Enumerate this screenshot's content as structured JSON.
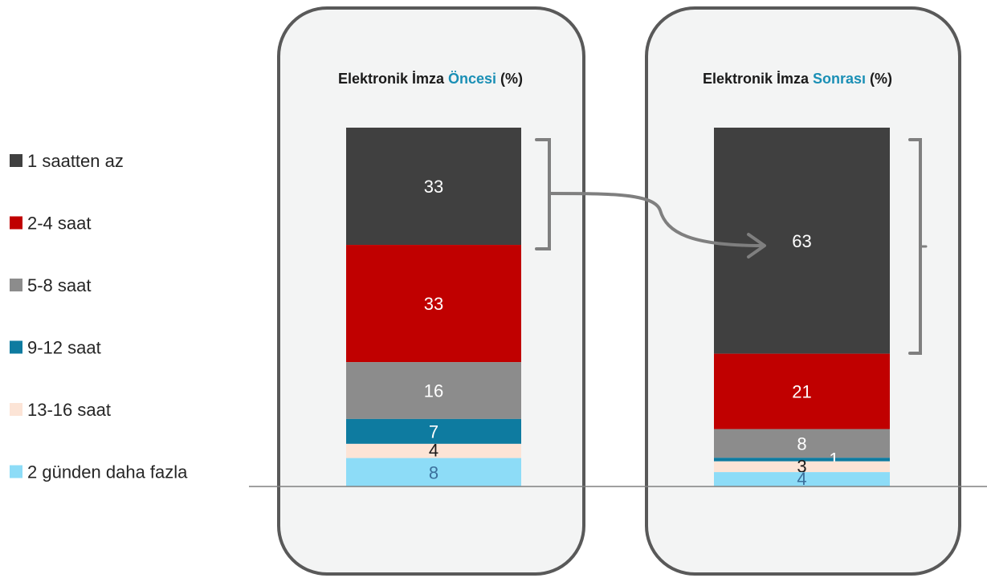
{
  "chart_data": {
    "type": "bar",
    "stacked": true,
    "unit": "%",
    "legend_position": "left",
    "categories": [
      "Elektronik İmza Öncesi (%)",
      "Elektronik İmza Sonrası (%)"
    ],
    "panels": [
      {
        "title_pre": "Elektronik İmza ",
        "title_highlight": "Öncesi",
        "title_post": " (%)"
      },
      {
        "title_pre": "Elektronik İmza ",
        "title_highlight": "Sonrası",
        "title_post": " (%)"
      }
    ],
    "series": [
      {
        "name": "1 saatten az",
        "color": "#404040",
        "values": [
          33,
          63
        ],
        "label_colors": [
          "#ffffff",
          "#ffffff"
        ]
      },
      {
        "name": "2-4 saat",
        "color": "#c00000",
        "values": [
          33,
          21
        ],
        "label_colors": [
          "#ffffff",
          "#ffffff"
        ]
      },
      {
        "name": "5-8 saat",
        "color": "#8c8c8c",
        "values": [
          16,
          8
        ],
        "label_colors": [
          "#ffffff",
          "#ffffff"
        ]
      },
      {
        "name": "9-12 saat",
        "color": "#0e7ba0",
        "values": [
          7,
          1
        ],
        "label_colors": [
          "#ffffff",
          "#ffffff"
        ]
      },
      {
        "name": "13-16 saat",
        "color": "#fce4d6",
        "values": [
          4,
          3
        ],
        "label_colors": [
          "#1a1a1a",
          "#1a1a1a"
        ]
      },
      {
        "name": "2 günden daha fazla",
        "color": "#8ddcf7",
        "values": [
          8,
          4
        ],
        "label_colors": [
          "#3b6f9c",
          "#3b6f9c"
        ]
      }
    ],
    "highlight_color": "#1a8fb5"
  }
}
